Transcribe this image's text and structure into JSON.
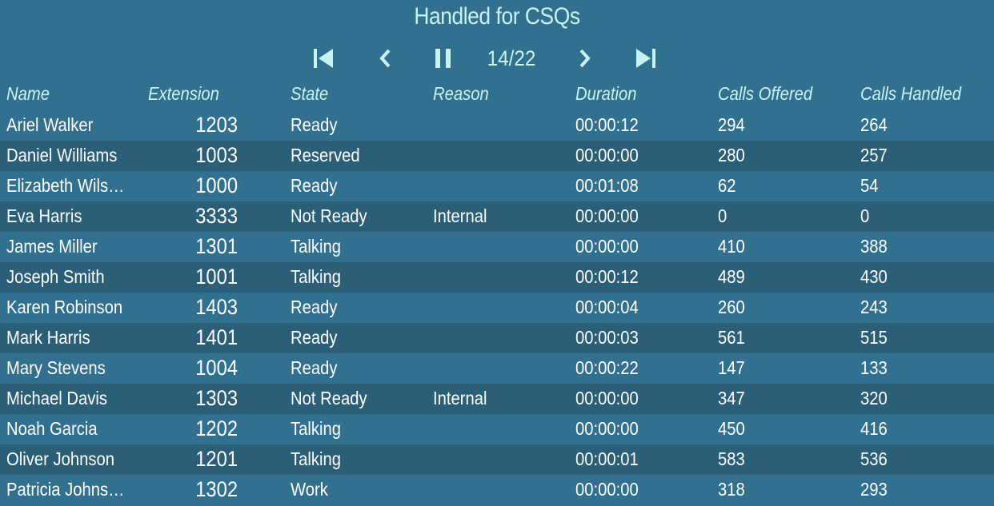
{
  "title": "Handled for CSQs",
  "pager": {
    "current": "14/22",
    "icons": [
      "skip-first-icon",
      "chevron-left-icon",
      "pause-icon",
      "chevron-right-icon",
      "skip-last-icon"
    ]
  },
  "colors": {
    "background": "#32708f",
    "alt_row": "#2b5f78",
    "header_text": "#c9f3f1",
    "text": "#ffffff"
  },
  "columns": [
    "Name",
    "Extension",
    "State",
    "Reason",
    "Duration",
    "Calls Offered",
    "Calls Handled"
  ],
  "rows": [
    [
      "Ariel Walker",
      "1203",
      "Ready",
      "",
      "00:00:12",
      "294",
      "264"
    ],
    [
      "Daniel Williams",
      "1003",
      "Reserved",
      "",
      "00:00:00",
      "280",
      "257"
    ],
    [
      "Elizabeth Wils…",
      "1000",
      "Ready",
      "",
      "00:01:08",
      "62",
      "54"
    ],
    [
      "Eva Harris",
      "3333",
      "Not Ready",
      "Internal",
      "00:00:00",
      "0",
      "0"
    ],
    [
      "James Miller",
      "1301",
      "Talking",
      "",
      "00:00:00",
      "410",
      "388"
    ],
    [
      "Joseph Smith",
      "1001",
      "Talking",
      "",
      "00:00:12",
      "489",
      "430"
    ],
    [
      "Karen Robinson",
      "1403",
      "Ready",
      "",
      "00:00:04",
      "260",
      "243"
    ],
    [
      "Mark Harris",
      "1401",
      "Ready",
      "",
      "00:00:03",
      "561",
      "515"
    ],
    [
      "Mary Stevens",
      "1004",
      "Ready",
      "",
      "00:00:22",
      "147",
      "133"
    ],
    [
      "Michael Davis",
      "1303",
      "Not Ready",
      "Internal",
      "00:00:00",
      "347",
      "320"
    ],
    [
      "Noah Garcia",
      "1202",
      "Talking",
      "",
      "00:00:00",
      "450",
      "416"
    ],
    [
      "Oliver Johnson",
      "1201",
      "Talking",
      "",
      "00:00:01",
      "583",
      "536"
    ],
    [
      "Patricia Johns…",
      "1302",
      "Work",
      "",
      "00:00:00",
      "318",
      "293"
    ]
  ]
}
